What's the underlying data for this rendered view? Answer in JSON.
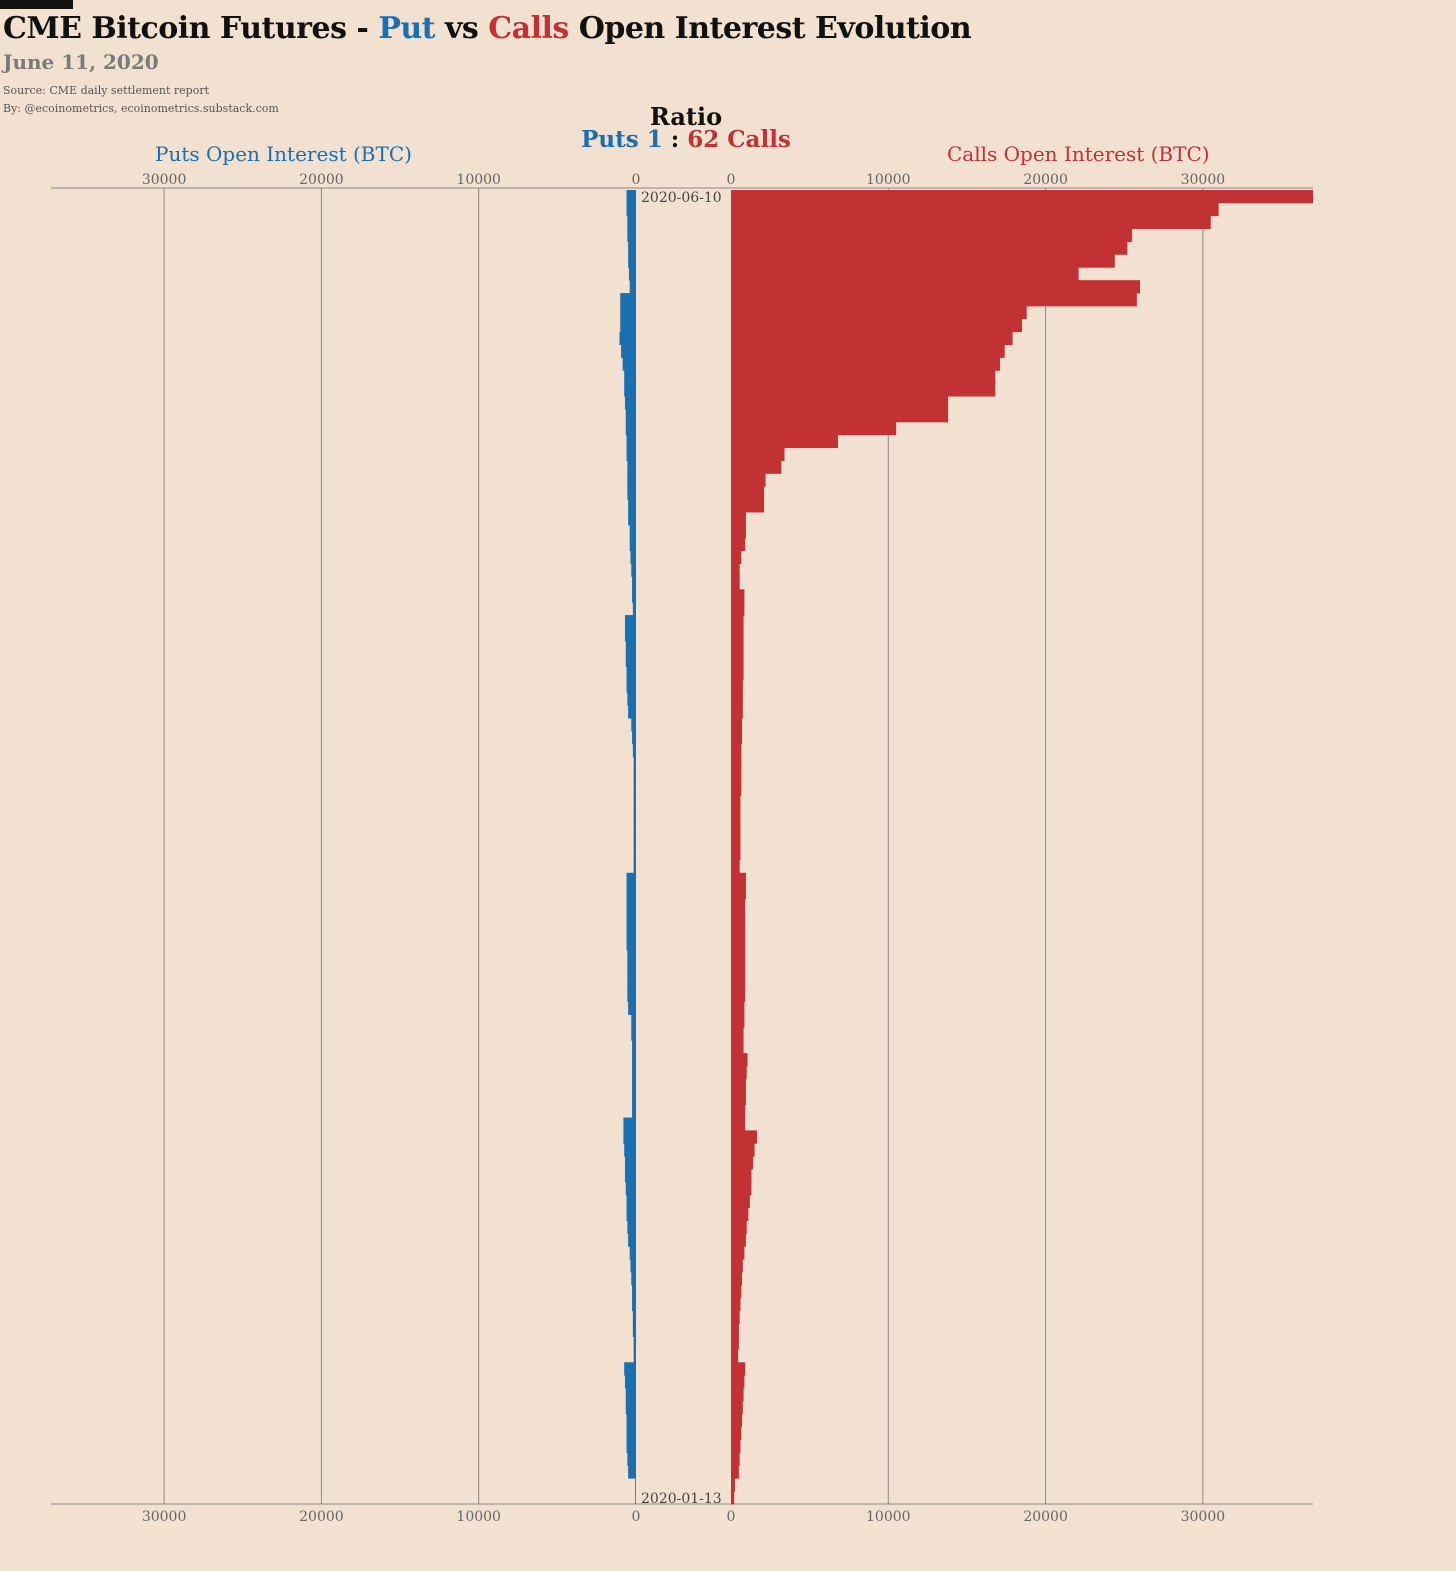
{
  "header": {
    "title_part1": "CME Bitcoin Futures - ",
    "title_put": "Put",
    "title_vs": " vs ",
    "title_calls": "Calls",
    "title_part2": " Open Interest Evolution",
    "subtitle": "June 11, 2020",
    "source": "Source: CME daily settlement report",
    "byline": "By: @ecoinometrics, ecoinometrics.substack.com"
  },
  "ratio": {
    "title": "Ratio",
    "puts_label": "Puts 1",
    "separator": ":",
    "calls_label": "62 Calls"
  },
  "colors": {
    "puts": "#1a6fb0",
    "calls": "#c23234",
    "background": "#f2e0d0"
  },
  "chart_data": {
    "type": "bar",
    "orientation": "horizontal-butterfly",
    "puts_axis_label": "Puts Open Interest (BTC)",
    "calls_axis_label": "Calls Open Interest (BTC)",
    "top_date_label": "2020-06-10",
    "bottom_date_label": "2020-01-13",
    "xlim": [
      0,
      37000
    ],
    "ticks": [
      0,
      10000,
      20000,
      30000
    ],
    "tick_labels": [
      "0",
      "10000",
      "20000",
      "30000"
    ],
    "grid": true,
    "date_range": [
      "2020-06-10",
      "2020-01-13"
    ],
    "series": [
      {
        "name": "Puts",
        "values": [
          600,
          600,
          550,
          550,
          500,
          500,
          450,
          400,
          1000,
          1000,
          1000,
          1050,
          950,
          850,
          750,
          750,
          700,
          650,
          650,
          600,
          600,
          550,
          550,
          550,
          500,
          500,
          400,
          400,
          350,
          300,
          250,
          250,
          200,
          700,
          700,
          650,
          650,
          600,
          600,
          550,
          500,
          300,
          250,
          200,
          150,
          150,
          150,
          150,
          150,
          150,
          150,
          150,
          150,
          600,
          600,
          600,
          600,
          600,
          600,
          550,
          550,
          550,
          550,
          500,
          300,
          300,
          250,
          250,
          250,
          250,
          250,
          250,
          800,
          800,
          750,
          700,
          700,
          650,
          600,
          600,
          550,
          500,
          400,
          350,
          300,
          250,
          250,
          200,
          200,
          150,
          150,
          750,
          700,
          650,
          650,
          600,
          600,
          600,
          550,
          500,
          50,
          50
        ]
      },
      {
        "name": "Calls",
        "values": [
          37000,
          31000,
          30500,
          25500,
          25200,
          24400,
          22100,
          26000,
          25800,
          18800,
          18500,
          17900,
          17400,
          17100,
          16800,
          16800,
          13800,
          13800,
          10500,
          6800,
          3400,
          3200,
          2200,
          2100,
          2100,
          950,
          950,
          900,
          650,
          550,
          550,
          850,
          850,
          800,
          800,
          800,
          800,
          800,
          750,
          750,
          750,
          700,
          700,
          650,
          650,
          650,
          650,
          600,
          600,
          600,
          600,
          600,
          550,
          950,
          950,
          900,
          900,
          900,
          900,
          900,
          900,
          900,
          900,
          850,
          850,
          800,
          800,
          1050,
          1000,
          950,
          950,
          900,
          900,
          1650,
          1500,
          1400,
          1300,
          1300,
          1200,
          1100,
          1000,
          950,
          850,
          750,
          700,
          650,
          600,
          550,
          500,
          500,
          450,
          900,
          850,
          800,
          750,
          700,
          650,
          600,
          550,
          500,
          250,
          200
        ]
      }
    ]
  }
}
